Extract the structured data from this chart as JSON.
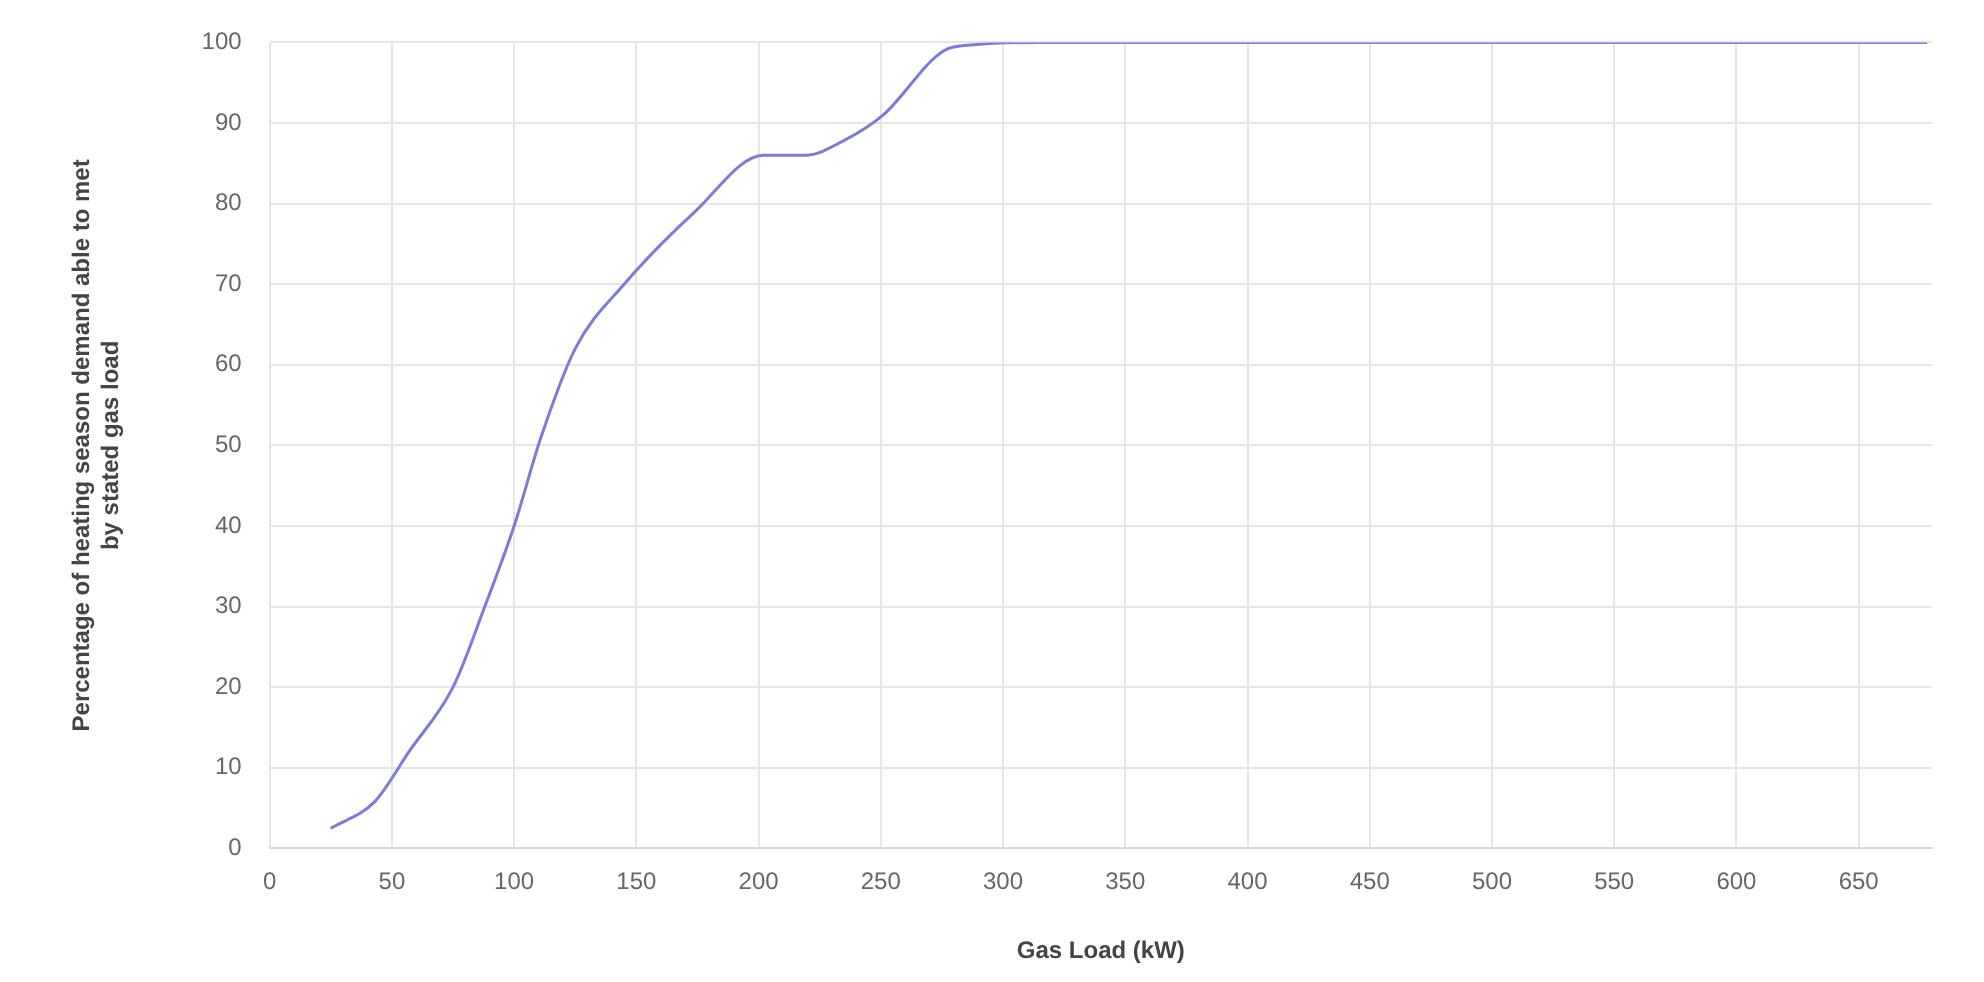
{
  "chart_data": {
    "type": "line",
    "xlabel": "Gas Load (kW)",
    "ylabel": "Percentage of heating season demand able to met\nby stated gas load",
    "x": [
      25,
      43,
      57,
      75,
      88,
      100,
      111,
      125,
      145,
      174,
      202,
      219,
      236,
      251,
      276,
      288,
      316,
      400,
      500,
      600,
      678
    ],
    "series": [
      {
        "color": "#7b7bdb",
        "values": [
          2.5,
          5.8,
          12,
          20,
          30,
          40,
          51,
          62,
          70,
          79,
          86,
          86,
          88,
          91,
          99,
          99.7,
          100,
          100,
          100,
          100,
          100
        ]
      }
    ],
    "xlim": [
      0,
      680
    ],
    "xticks": [
      0,
      50,
      100,
      150,
      200,
      250,
      300,
      350,
      400,
      450,
      500,
      550,
      600,
      650
    ],
    "ylim": [
      0,
      100
    ],
    "yticks": [
      0,
      10,
      20,
      30,
      40,
      50,
      60,
      70,
      80,
      90,
      100
    ],
    "grid": true,
    "legend": false,
    "marker": "none",
    "line_style": "solid"
  }
}
